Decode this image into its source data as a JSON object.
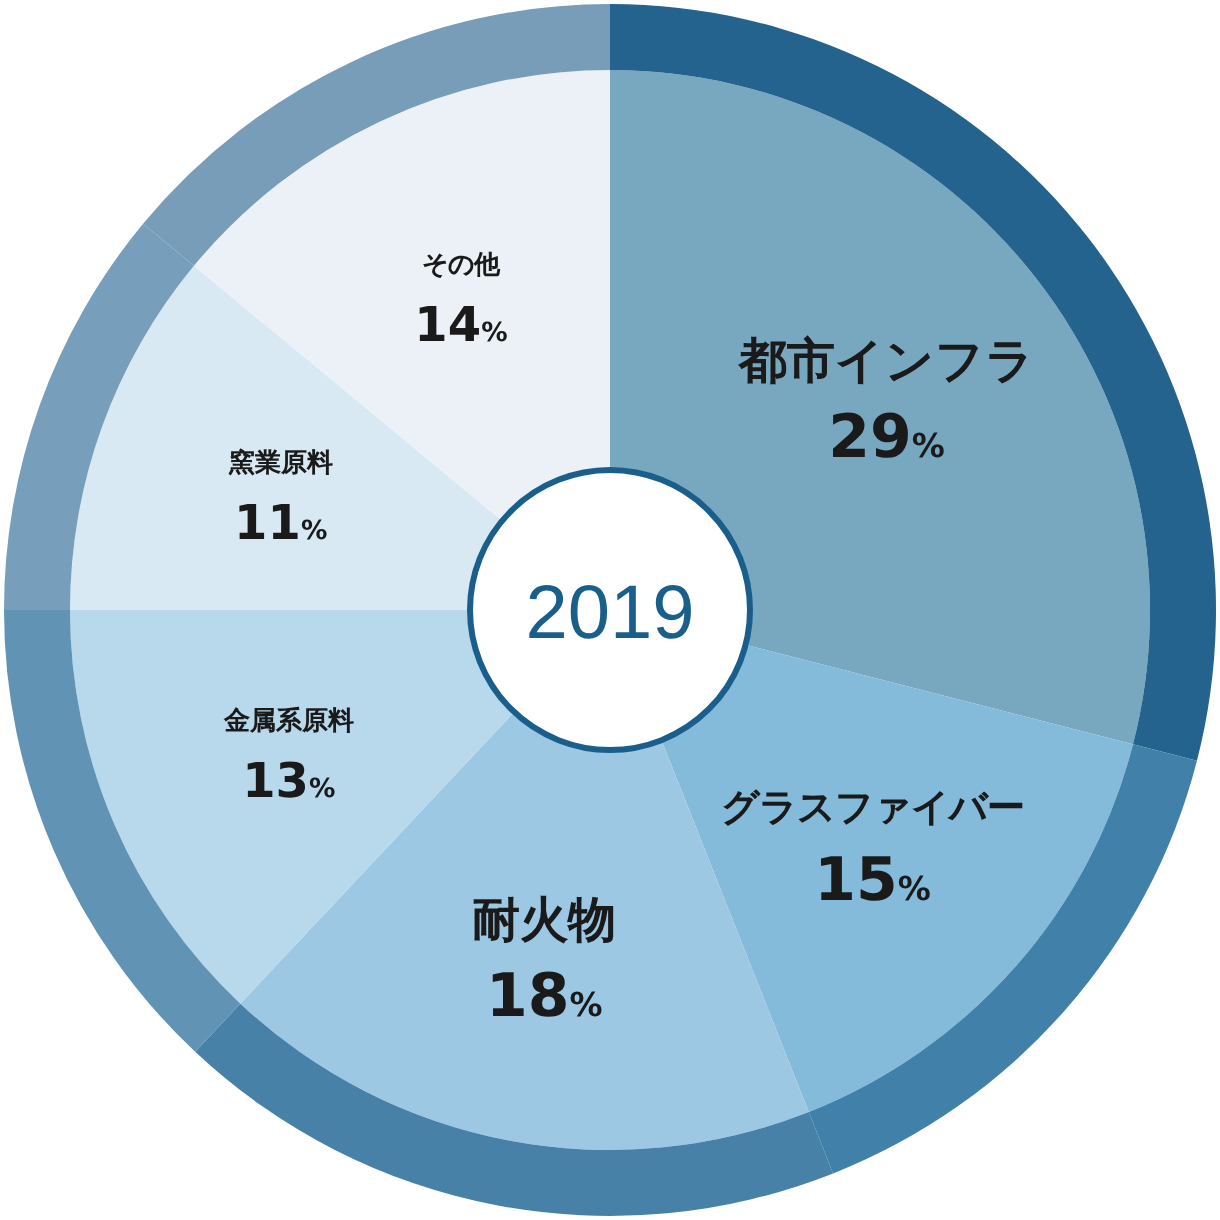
{
  "chart_data": {
    "type": "donut",
    "title": "2019",
    "categories": [
      "都市インフラ",
      "グラスファイバー",
      "耐火物",
      "金属系原料",
      "窯業原料",
      "その他"
    ],
    "values": [
      29,
      15,
      18,
      13,
      11,
      14
    ],
    "value_labels": [
      "29%",
      "15%",
      "18%",
      "13%",
      "11%",
      "14%"
    ],
    "colors": [
      "#78a7c0",
      "#84bbdb",
      "#9dc8e3",
      "#b8d9ec",
      "#d9e9f3",
      "#ebf1f6"
    ]
  }
}
